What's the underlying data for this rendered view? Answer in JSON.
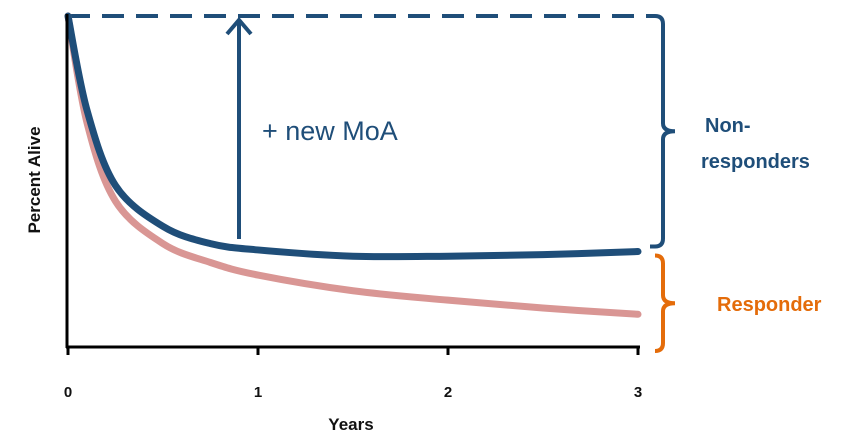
{
  "chart_data": {
    "type": "line",
    "xlabel": "Years",
    "ylabel": "Percent Alive",
    "x_ticks": [
      "0",
      "1",
      "2",
      "3"
    ],
    "xlim": [
      0,
      3
    ],
    "ylim": [
      0,
      100
    ],
    "grid": false,
    "series": [
      {
        "color": "#1f4e79",
        "x": [
          0,
          0.1,
          0.25,
          0.5,
          0.75,
          1,
          1.5,
          2,
          2.5,
          3
        ],
        "y": [
          100,
          70,
          46,
          33,
          27.5,
          25.5,
          23.5,
          23.5,
          24,
          25
        ]
      },
      {
        "color": "#d99694",
        "x": [
          0,
          0.1,
          0.25,
          0.5,
          0.75,
          1,
          1.5,
          2,
          2.5,
          3
        ],
        "y": [
          100,
          66,
          41,
          27.5,
          21.5,
          17.5,
          12.5,
          9.5,
          7,
          5
        ]
      }
    ],
    "reference_line": {
      "y": 100,
      "style": "dashed",
      "color": "#1f4e79"
    },
    "annotations": {
      "arrow": {
        "x": 0.9,
        "from_y": 29,
        "to_y": 100,
        "label": "+ new MoA",
        "color": "#1f4e79"
      },
      "non_responders": {
        "label_line1": "Non-",
        "label_line2": "responders",
        "from_y": 100,
        "to_y": 25,
        "color": "#1f4e79"
      },
      "responder": {
        "label": "Responder",
        "from_y": 25,
        "to_y": 0,
        "color": "#e46c0a"
      }
    }
  }
}
